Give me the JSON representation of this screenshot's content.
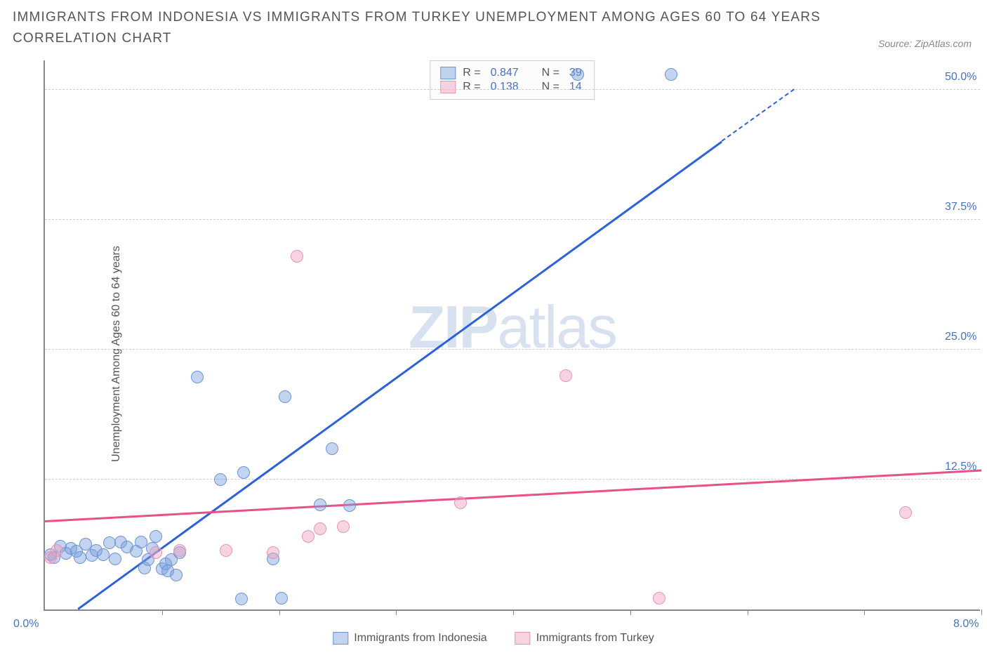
{
  "title": "IMMIGRANTS FROM INDONESIA VS IMMIGRANTS FROM TURKEY UNEMPLOYMENT AMONG AGES 60 TO 64 YEARS CORRELATION CHART",
  "source": "Source: ZipAtlas.com",
  "watermark_zip": "ZIP",
  "watermark_atlas": "atlas",
  "y_axis_label": "Unemployment Among Ages 60 to 64 years",
  "chart": {
    "type": "scatter",
    "background_color": "#ffffff",
    "grid_color": "#cccccc",
    "axis_color": "#888888",
    "tick_label_color": "#4472c4",
    "x_min": 0.0,
    "x_max": 8.0,
    "y_min": 0.0,
    "y_max": 53.0,
    "y_ticks": [
      12.5,
      25.0,
      37.5,
      50.0
    ],
    "y_tick_labels": [
      "12.5%",
      "25.0%",
      "37.5%",
      "50.0%"
    ],
    "x_ticks": [
      1.0,
      2.0,
      3.0,
      4.0,
      5.0,
      6.0,
      7.0,
      8.0
    ],
    "x_min_label": "0.0%",
    "x_max_label": "8.0%",
    "marker_radius": 9,
    "series": [
      {
        "name": "Immigrants from Indonesia",
        "fill_color": "rgba(120,160,220,0.45)",
        "stroke_color": "#6e94d4",
        "trend_color": "#2b62d9",
        "trend_width": 2.5,
        "R": "0.847",
        "N": "39",
        "trend": {
          "x1": 0.28,
          "y1": 0.0,
          "x2": 5.78,
          "y2": 45.0,
          "dash_from_x": 5.78,
          "dash_to_x": 6.4,
          "dash_to_y": 50.0
        },
        "points": [
          {
            "x": 0.05,
            "y": 5.3
          },
          {
            "x": 0.08,
            "y": 5.0
          },
          {
            "x": 0.13,
            "y": 6.1
          },
          {
            "x": 0.18,
            "y": 5.4
          },
          {
            "x": 0.22,
            "y": 5.9
          },
          {
            "x": 0.27,
            "y": 5.6
          },
          {
            "x": 0.3,
            "y": 5.0
          },
          {
            "x": 0.35,
            "y": 6.3
          },
          {
            "x": 0.4,
            "y": 5.2
          },
          {
            "x": 0.44,
            "y": 5.7
          },
          {
            "x": 0.5,
            "y": 5.3
          },
          {
            "x": 0.55,
            "y": 6.4
          },
          {
            "x": 0.6,
            "y": 4.9
          },
          {
            "x": 0.65,
            "y": 6.5
          },
          {
            "x": 0.7,
            "y": 6.0
          },
          {
            "x": 0.78,
            "y": 5.6
          },
          {
            "x": 0.82,
            "y": 6.5
          },
          {
            "x": 0.85,
            "y": 4.0
          },
          {
            "x": 0.88,
            "y": 4.8
          },
          {
            "x": 0.92,
            "y": 5.9
          },
          {
            "x": 0.95,
            "y": 7.0
          },
          {
            "x": 1.0,
            "y": 3.9
          },
          {
            "x": 1.03,
            "y": 4.4
          },
          {
            "x": 1.05,
            "y": 3.7
          },
          {
            "x": 1.08,
            "y": 4.8
          },
          {
            "x": 1.12,
            "y": 3.3
          },
          {
            "x": 1.15,
            "y": 5.5
          },
          {
            "x": 1.3,
            "y": 22.4
          },
          {
            "x": 1.5,
            "y": 12.5
          },
          {
            "x": 1.68,
            "y": 1.0
          },
          {
            "x": 1.7,
            "y": 13.2
          },
          {
            "x": 1.95,
            "y": 4.9
          },
          {
            "x": 2.02,
            "y": 1.1
          },
          {
            "x": 2.05,
            "y": 20.5
          },
          {
            "x": 2.35,
            "y": 10.1
          },
          {
            "x": 2.45,
            "y": 15.5
          },
          {
            "x": 2.6,
            "y": 10.0
          },
          {
            "x": 4.55,
            "y": 51.5
          },
          {
            "x": 5.35,
            "y": 51.5
          }
        ]
      },
      {
        "name": "Immigrants from Turkey",
        "fill_color": "rgba(240,160,190,0.45)",
        "stroke_color": "#e794b2",
        "trend_color": "#e94f8a",
        "trend_width": 2.5,
        "R": "0.138",
        "N": "14",
        "trend": {
          "x1": 0.0,
          "y1": 8.4,
          "x2": 8.0,
          "y2": 13.3
        },
        "points": [
          {
            "x": 0.05,
            "y": 5.0
          },
          {
            "x": 0.1,
            "y": 5.7
          },
          {
            "x": 0.95,
            "y": 5.5
          },
          {
            "x": 1.15,
            "y": 5.7
          },
          {
            "x": 1.55,
            "y": 5.7
          },
          {
            "x": 1.95,
            "y": 5.5
          },
          {
            "x": 2.15,
            "y": 34.0
          },
          {
            "x": 2.25,
            "y": 7.0
          },
          {
            "x": 2.35,
            "y": 7.8
          },
          {
            "x": 2.55,
            "y": 8.0
          },
          {
            "x": 3.55,
            "y": 10.3
          },
          {
            "x": 4.45,
            "y": 22.5
          },
          {
            "x": 5.25,
            "y": 1.1
          },
          {
            "x": 7.35,
            "y": 9.3
          }
        ]
      }
    ],
    "legend_box": {
      "border_color": "#cccccc",
      "bg_color": "#fcfcfc",
      "R_label": "R =",
      "N_label": "N ="
    }
  }
}
